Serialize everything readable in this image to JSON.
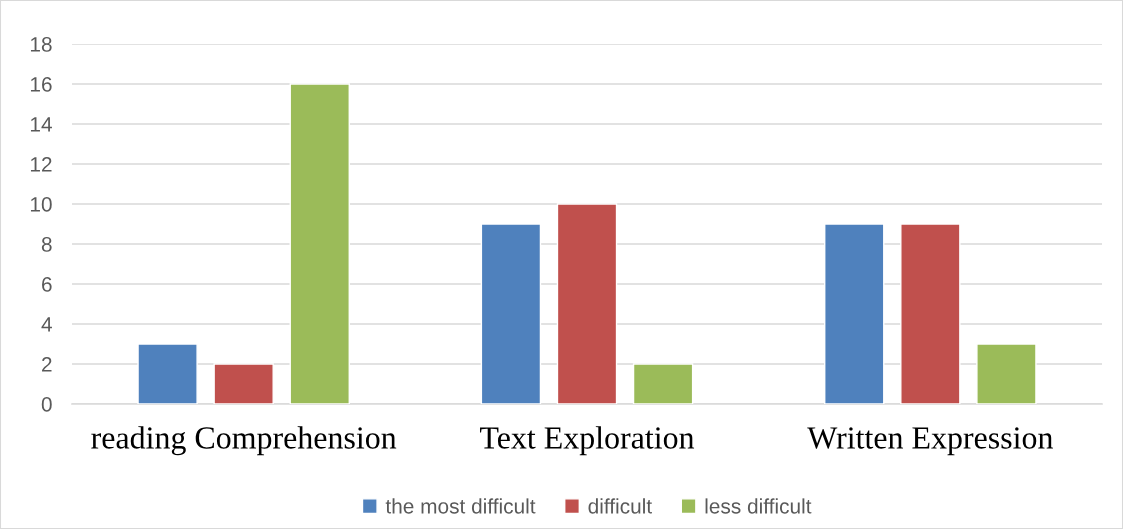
{
  "chart_data": {
    "type": "bar",
    "categories": [
      "reading Comprehension",
      "Text Exploration",
      "Written Expression"
    ],
    "series": [
      {
        "name": "the most difficult",
        "color": "#4f81bd",
        "values": [
          3,
          9,
          9
        ]
      },
      {
        "name": "difficult",
        "color": "#c0504d",
        "values": [
          2,
          10,
          9
        ]
      },
      {
        "name": "less difficult",
        "color": "#9bbb59",
        "values": [
          16,
          2,
          3
        ]
      }
    ],
    "ylim": [
      0,
      18
    ],
    "yticks": [
      0,
      2,
      4,
      6,
      8,
      10,
      12,
      14,
      16,
      18
    ],
    "grid": "y",
    "legend": "bottom"
  }
}
